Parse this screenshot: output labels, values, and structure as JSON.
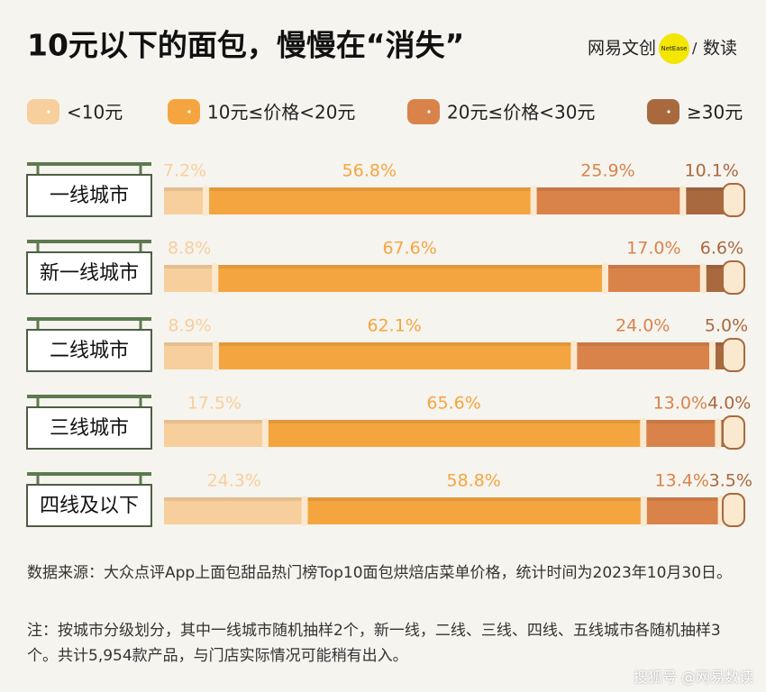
{
  "chart_data": {
    "type": "stacked-bar-horizontal",
    "title": "10元以下的面包，慢慢在“消失”",
    "brand": {
      "left": "网易文创",
      "badge": "NetEase",
      "right": "数读"
    },
    "categories": [
      "一线城市",
      "新一线城市",
      "二线城市",
      "三线城市",
      "四线及以下"
    ],
    "series": [
      {
        "name": "<10元",
        "color": "#f7cf9c",
        "values": [
          7.2,
          8.8,
          8.9,
          17.5,
          24.3
        ],
        "value_labels": [
          "7.2%",
          "8.8%",
          "8.9%",
          "17.5%",
          "24.3%"
        ]
      },
      {
        "name": "10元≤价格<20元",
        "color": "#f5a53f",
        "values": [
          56.8,
          67.6,
          62.1,
          65.6,
          58.8
        ],
        "value_labels": [
          "56.8%",
          "67.6%",
          "62.1%",
          "65.6%",
          "58.8%"
        ]
      },
      {
        "name": "20元≤价格<30元",
        "color": "#d9834b",
        "values": [
          25.9,
          17.0,
          24.0,
          13.0,
          13.4
        ],
        "value_labels": [
          "25.9%",
          "17.0%",
          "24.0%",
          "13.0%",
          "13.4%"
        ]
      },
      {
        "name": "≥30元",
        "color": "#a8693f",
        "values": [
          10.1,
          6.6,
          5.0,
          4.0,
          3.5
        ],
        "value_labels": [
          "10.1%",
          "6.6%",
          "5.0%",
          "4.0%",
          "3.5%"
        ]
      }
    ],
    "source": "数据来源：大众点评App上面包甜品热门榜Top10面包烘焙店菜单价格，统计时间为2023年10月30日。",
    "note": "注：按城市分级划分，其中一线城市随机抽样2个，新一线，二线、三线、四线、五线城市各随机抽样3个。共计5,954款产品，与门店实际情况可能稍有出入。",
    "watermark": {
      "platform": "搜狐号",
      "account": "@网易数读"
    }
  }
}
